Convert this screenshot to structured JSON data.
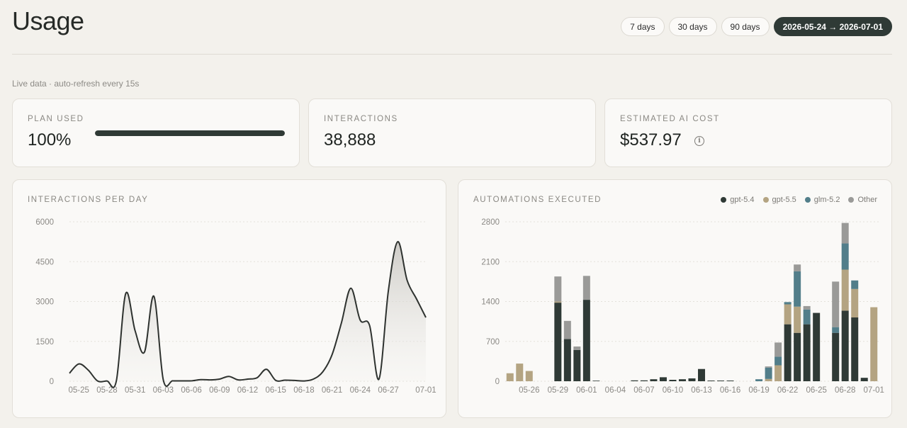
{
  "header": {
    "title": "Usage",
    "ranges": [
      "7 days",
      "30 days",
      "90 days",
      "2026-05-24 → 2026-07-01"
    ],
    "active_range": 3
  },
  "live_note": "Live data · auto-refresh every 15s",
  "stats": {
    "plan_used": {
      "label": "PLAN USED",
      "value": "100%",
      "progress": 1.0
    },
    "interactions": {
      "label": "INTERACTIONS",
      "value": "38,888"
    },
    "cost": {
      "label": "ESTIMATED AI COST",
      "value": "$537.97",
      "info_icon": "info-icon"
    }
  },
  "colors": {
    "accent": "#2f3a36",
    "gpt54": "#2f3a36",
    "gpt55": "#b4a482",
    "glm52": "#527e8a",
    "other": "#9a9a98"
  },
  "chart_data": [
    {
      "type": "area",
      "title": "INTERACTIONS PER DAY",
      "x_ticks": [
        "05-25",
        "05-28",
        "05-31",
        "06-03",
        "06-06",
        "06-09",
        "06-12",
        "06-15",
        "06-18",
        "06-21",
        "06-24",
        "06-27",
        "07-01"
      ],
      "y_ticks": [
        "0",
        "1500",
        "3000",
        "4500",
        "6000"
      ],
      "ylim": [
        0,
        6000
      ],
      "grid": true,
      "x": [
        "05-24",
        "05-25",
        "05-26",
        "05-27",
        "05-28",
        "05-29",
        "05-30",
        "05-31",
        "06-01",
        "06-02",
        "06-03",
        "06-04",
        "06-05",
        "06-06",
        "06-07",
        "06-08",
        "06-09",
        "06-10",
        "06-11",
        "06-12",
        "06-13",
        "06-14",
        "06-15",
        "06-16",
        "06-17",
        "06-18",
        "06-19",
        "06-20",
        "06-21",
        "06-22",
        "06-23",
        "06-24",
        "06-25",
        "06-26",
        "06-27",
        "06-28",
        "06-29",
        "06-30",
        "07-01"
      ],
      "values": [
        300,
        650,
        420,
        10,
        10,
        10,
        3300,
        1900,
        1100,
        3200,
        60,
        15,
        15,
        15,
        60,
        50,
        80,
        180,
        50,
        80,
        130,
        450,
        30,
        40,
        30,
        10,
        80,
        350,
        1000,
        2200,
        3500,
        2300,
        2100,
        80,
        3400,
        5250,
        3800,
        3100,
        2400
      ]
    },
    {
      "type": "bar",
      "stacked": true,
      "title": "AUTOMATIONS EXECUTED",
      "legend": [
        "gpt-5.4",
        "gpt-5.5",
        "glm-5.2",
        "Other"
      ],
      "legend_position": "top-right",
      "x_ticks": [
        "05-26",
        "05-29",
        "06-01",
        "06-04",
        "06-07",
        "06-10",
        "06-13",
        "06-16",
        "06-19",
        "06-22",
        "06-25",
        "06-28",
        "07-01"
      ],
      "y_ticks": [
        "0",
        "700",
        "1400",
        "2100",
        "2800"
      ],
      "ylim": [
        0,
        2800
      ],
      "grid": true,
      "categories": [
        "05-24",
        "05-25",
        "05-26",
        "05-27",
        "05-28",
        "05-29",
        "05-30",
        "05-31",
        "06-01",
        "06-02",
        "06-03",
        "06-04",
        "06-05",
        "06-06",
        "06-07",
        "06-08",
        "06-09",
        "06-10",
        "06-11",
        "06-12",
        "06-13",
        "06-14",
        "06-15",
        "06-16",
        "06-17",
        "06-18",
        "06-19",
        "06-20",
        "06-21",
        "06-22",
        "06-23",
        "06-24",
        "06-25",
        "06-26",
        "06-27",
        "06-28",
        "06-29",
        "06-30",
        "07-01"
      ],
      "series": [
        {
          "name": "gpt-5.4",
          "values": [
            0,
            0,
            0,
            0,
            0,
            1380,
            740,
            550,
            1430,
            10,
            0,
            0,
            0,
            15,
            15,
            35,
            70,
            25,
            35,
            50,
            215,
            12,
            12,
            12,
            0,
            0,
            0,
            0,
            0,
            1000,
            850,
            1000,
            1200,
            0,
            850,
            1240,
            1120,
            60,
            0
          ]
        },
        {
          "name": "gpt-5.5",
          "values": [
            140,
            310,
            180,
            0,
            0,
            20,
            0,
            0,
            0,
            0,
            0,
            0,
            0,
            0,
            0,
            0,
            0,
            0,
            0,
            0,
            0,
            0,
            0,
            0,
            0,
            0,
            0,
            40,
            280,
            350,
            460,
            0,
            0,
            0,
            0,
            720,
            500,
            0,
            1300
          ]
        },
        {
          "name": "glm-5.2",
          "values": [
            0,
            0,
            0,
            0,
            0,
            0,
            0,
            0,
            0,
            0,
            0,
            0,
            0,
            0,
            0,
            0,
            0,
            0,
            0,
            0,
            0,
            0,
            0,
            0,
            0,
            0,
            35,
            200,
            150,
            40,
            620,
            260,
            0,
            0,
            100,
            460,
            150,
            0,
            0
          ]
        },
        {
          "name": "Other",
          "values": [
            0,
            0,
            0,
            0,
            0,
            440,
            320,
            60,
            420,
            0,
            0,
            0,
            0,
            0,
            0,
            0,
            0,
            0,
            0,
            0,
            0,
            0,
            0,
            0,
            0,
            0,
            0,
            20,
            250,
            0,
            120,
            60,
            0,
            0,
            800,
            360,
            0,
            0,
            0
          ]
        }
      ]
    }
  ]
}
